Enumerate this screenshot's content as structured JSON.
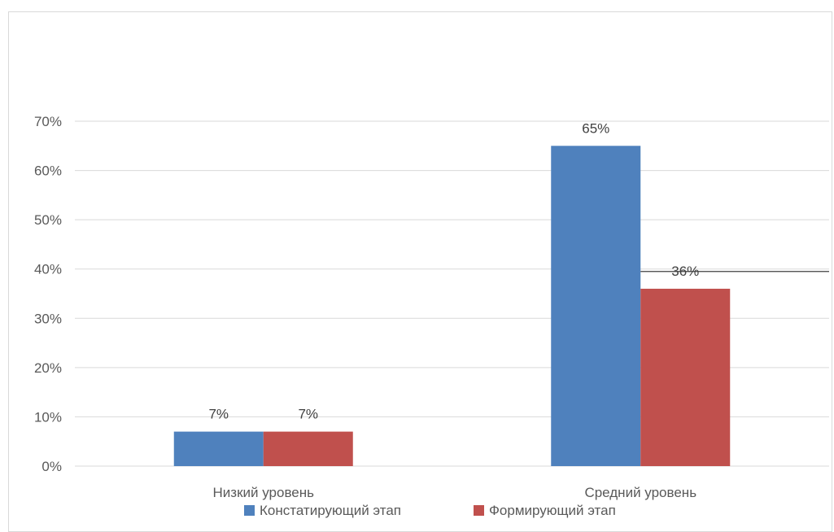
{
  "chart_data": {
    "type": "bar",
    "categories": [
      "Низкий уровень",
      "Средний уровень"
    ],
    "series": [
      {
        "name": "Констатирующий этап",
        "values": [
          7,
          65
        ],
        "labels": [
          "7%",
          "65%"
        ],
        "color": "#4f81bd"
      },
      {
        "name": "Формирующий этап",
        "values": [
          7,
          36
        ],
        "labels": [
          "7%",
          "36%"
        ],
        "color": "#c0504d"
      }
    ],
    "y_ticks": [
      0,
      10,
      20,
      30,
      40,
      50,
      60,
      70
    ],
    "y_tick_labels": [
      "0%",
      "10%",
      "20%",
      "30%",
      "40%",
      "50%",
      "60%",
      "70%"
    ],
    "ylim": [
      0,
      70
    ],
    "grid": true,
    "legend_position": "bottom",
    "gridline_color": "#d9d9d9",
    "reference_line": {
      "y": 39.5,
      "from_category": 1,
      "color": "#404040"
    }
  }
}
